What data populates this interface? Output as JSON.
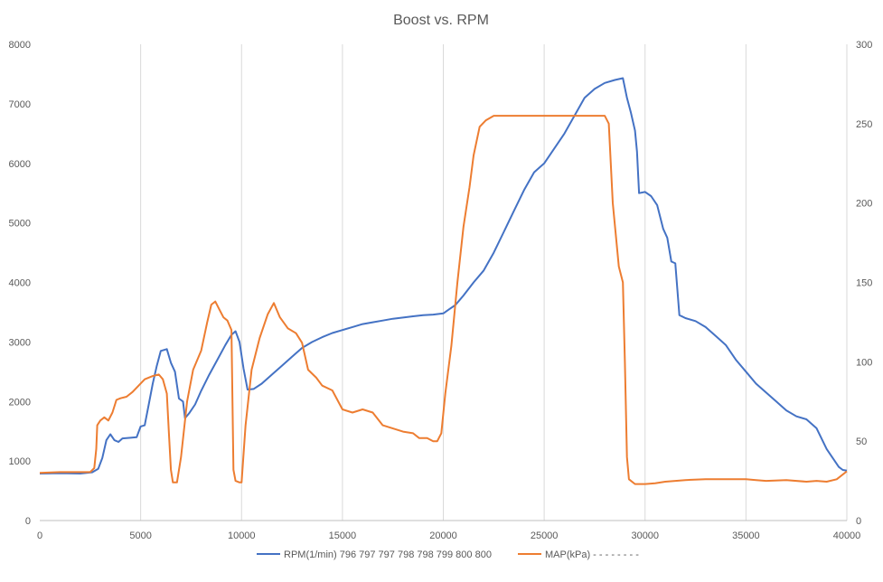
{
  "chart_data": {
    "type": "line",
    "title": "Boost vs. RPM",
    "xlabel": "",
    "ylabel": "",
    "y2label": "",
    "xlim": [
      0,
      40000
    ],
    "ylim": [
      0,
      8000
    ],
    "y2lim": [
      0,
      300
    ],
    "x_ticks": [
      "0",
      "5000",
      "10000",
      "15000",
      "20000",
      "25000",
      "30000",
      "35000",
      "40000"
    ],
    "y_ticks": [
      "0",
      "1000",
      "2000",
      "3000",
      "4000",
      "5000",
      "6000",
      "7000",
      "8000"
    ],
    "y2_ticks": [
      "0",
      "50",
      "100",
      "150",
      "200",
      "250",
      "300"
    ],
    "grid": "vertical",
    "legend_position": "bottom",
    "colors": {
      "rpm": "#4472C4",
      "map": "#ED7D31",
      "grid": "#d9d9d9",
      "text": "#595959"
    },
    "series": [
      {
        "name": "RPM(1/min) 796 797 797 798 798 799 800 800",
        "axis": "left",
        "points": [
          [
            0,
            790
          ],
          [
            1000,
            795
          ],
          [
            2000,
            790
          ],
          [
            2600,
            810
          ],
          [
            2900,
            870
          ],
          [
            3100,
            1050
          ],
          [
            3300,
            1350
          ],
          [
            3500,
            1450
          ],
          [
            3700,
            1350
          ],
          [
            3900,
            1320
          ],
          [
            4100,
            1380
          ],
          [
            4500,
            1390
          ],
          [
            4800,
            1400
          ],
          [
            5000,
            1580
          ],
          [
            5200,
            1600
          ],
          [
            5400,
            1950
          ],
          [
            5600,
            2300
          ],
          [
            5800,
            2600
          ],
          [
            6000,
            2850
          ],
          [
            6300,
            2880
          ],
          [
            6500,
            2650
          ],
          [
            6700,
            2500
          ],
          [
            6900,
            2050
          ],
          [
            7100,
            2000
          ],
          [
            7200,
            1720
          ],
          [
            7400,
            1800
          ],
          [
            7700,
            1950
          ],
          [
            8000,
            2180
          ],
          [
            8400,
            2450
          ],
          [
            8800,
            2700
          ],
          [
            9200,
            2950
          ],
          [
            9500,
            3120
          ],
          [
            9700,
            3180
          ],
          [
            9900,
            3000
          ],
          [
            10100,
            2550
          ],
          [
            10300,
            2200
          ],
          [
            10600,
            2210
          ],
          [
            11000,
            2300
          ],
          [
            11500,
            2450
          ],
          [
            12000,
            2600
          ],
          [
            12500,
            2750
          ],
          [
            13000,
            2900
          ],
          [
            13500,
            3000
          ],
          [
            14000,
            3080
          ],
          [
            14500,
            3150
          ],
          [
            15000,
            3200
          ],
          [
            15500,
            3250
          ],
          [
            16000,
            3300
          ],
          [
            16500,
            3330
          ],
          [
            17000,
            3360
          ],
          [
            17500,
            3390
          ],
          [
            18000,
            3410
          ],
          [
            18500,
            3430
          ],
          [
            19000,
            3450
          ],
          [
            19500,
            3460
          ],
          [
            20000,
            3480
          ],
          [
            20300,
            3550
          ],
          [
            20600,
            3620
          ],
          [
            21000,
            3780
          ],
          [
            21500,
            4000
          ],
          [
            22000,
            4200
          ],
          [
            22500,
            4500
          ],
          [
            23000,
            4850
          ],
          [
            23500,
            5200
          ],
          [
            24000,
            5550
          ],
          [
            24500,
            5850
          ],
          [
            25000,
            6000
          ],
          [
            25500,
            6250
          ],
          [
            26000,
            6500
          ],
          [
            26500,
            6800
          ],
          [
            27000,
            7100
          ],
          [
            27500,
            7250
          ],
          [
            28000,
            7350
          ],
          [
            28500,
            7400
          ],
          [
            28900,
            7430
          ],
          [
            29100,
            7100
          ],
          [
            29300,
            6850
          ],
          [
            29500,
            6550
          ],
          [
            29600,
            6200
          ],
          [
            29700,
            5500
          ],
          [
            30000,
            5520
          ],
          [
            30300,
            5450
          ],
          [
            30600,
            5300
          ],
          [
            30900,
            4900
          ],
          [
            31100,
            4750
          ],
          [
            31300,
            4350
          ],
          [
            31500,
            4320
          ],
          [
            31700,
            3450
          ],
          [
            32000,
            3400
          ],
          [
            32500,
            3350
          ],
          [
            33000,
            3250
          ],
          [
            33500,
            3100
          ],
          [
            34000,
            2950
          ],
          [
            34500,
            2700
          ],
          [
            35000,
            2500
          ],
          [
            35500,
            2300
          ],
          [
            36000,
            2150
          ],
          [
            36500,
            2000
          ],
          [
            37000,
            1850
          ],
          [
            37500,
            1750
          ],
          [
            38000,
            1700
          ],
          [
            38500,
            1550
          ],
          [
            39000,
            1200
          ],
          [
            39300,
            1050
          ],
          [
            39600,
            900
          ],
          [
            39800,
            850
          ],
          [
            40000,
            840
          ]
        ]
      },
      {
        "name": "MAP(kPa) - - - - - - - -",
        "axis": "right",
        "points": [
          [
            0,
            30
          ],
          [
            1000,
            30.5
          ],
          [
            2000,
            30.5
          ],
          [
            2500,
            30.5
          ],
          [
            2700,
            33
          ],
          [
            2800,
            45
          ],
          [
            2850,
            60
          ],
          [
            3000,
            63
          ],
          [
            3200,
            65
          ],
          [
            3400,
            63
          ],
          [
            3600,
            68
          ],
          [
            3800,
            76
          ],
          [
            4000,
            77
          ],
          [
            4300,
            78
          ],
          [
            4600,
            81
          ],
          [
            4900,
            85
          ],
          [
            5200,
            89
          ],
          [
            5600,
            91
          ],
          [
            5900,
            92
          ],
          [
            6100,
            89
          ],
          [
            6300,
            80
          ],
          [
            6400,
            55
          ],
          [
            6500,
            32
          ],
          [
            6600,
            24
          ],
          [
            6800,
            24
          ],
          [
            7000,
            40
          ],
          [
            7300,
            75
          ],
          [
            7600,
            95
          ],
          [
            8000,
            107
          ],
          [
            8300,
            125
          ],
          [
            8500,
            136
          ],
          [
            8700,
            138
          ],
          [
            8900,
            133
          ],
          [
            9100,
            128
          ],
          [
            9300,
            126
          ],
          [
            9500,
            120
          ],
          [
            9600,
            32
          ],
          [
            9700,
            25
          ],
          [
            9900,
            24
          ],
          [
            10000,
            24
          ],
          [
            10200,
            60
          ],
          [
            10500,
            95
          ],
          [
            10900,
            115
          ],
          [
            11300,
            130
          ],
          [
            11600,
            137
          ],
          [
            11900,
            128
          ],
          [
            12300,
            121
          ],
          [
            12700,
            118
          ],
          [
            13000,
            112
          ],
          [
            13300,
            95
          ],
          [
            13700,
            90
          ],
          [
            14000,
            85
          ],
          [
            14500,
            82
          ],
          [
            15000,
            70
          ],
          [
            15500,
            68
          ],
          [
            16000,
            70
          ],
          [
            16500,
            68
          ],
          [
            17000,
            60
          ],
          [
            17500,
            58
          ],
          [
            18000,
            56
          ],
          [
            18500,
            55
          ],
          [
            18800,
            52
          ],
          [
            19200,
            52
          ],
          [
            19500,
            50
          ],
          [
            19700,
            50
          ],
          [
            19900,
            55
          ],
          [
            20100,
            80
          ],
          [
            20400,
            110
          ],
          [
            20700,
            150
          ],
          [
            21000,
            185
          ],
          [
            21300,
            210
          ],
          [
            21500,
            230
          ],
          [
            21800,
            248
          ],
          [
            22100,
            252
          ],
          [
            22500,
            255
          ],
          [
            25000,
            255
          ],
          [
            28000,
            255
          ],
          [
            28200,
            250
          ],
          [
            28400,
            200
          ],
          [
            28700,
            160
          ],
          [
            28900,
            150
          ],
          [
            29000,
            100
          ],
          [
            29100,
            40
          ],
          [
            29200,
            26
          ],
          [
            29500,
            23
          ],
          [
            30000,
            23
          ],
          [
            30500,
            23.5
          ],
          [
            31000,
            24.5
          ],
          [
            32000,
            25.5
          ],
          [
            33000,
            26
          ],
          [
            34000,
            26
          ],
          [
            35000,
            26
          ],
          [
            35500,
            25.5
          ],
          [
            36000,
            25
          ],
          [
            37000,
            25.5
          ],
          [
            38000,
            24.5
          ],
          [
            38500,
            25
          ],
          [
            39000,
            24.5
          ],
          [
            39500,
            26
          ],
          [
            40000,
            31
          ]
        ]
      }
    ]
  }
}
